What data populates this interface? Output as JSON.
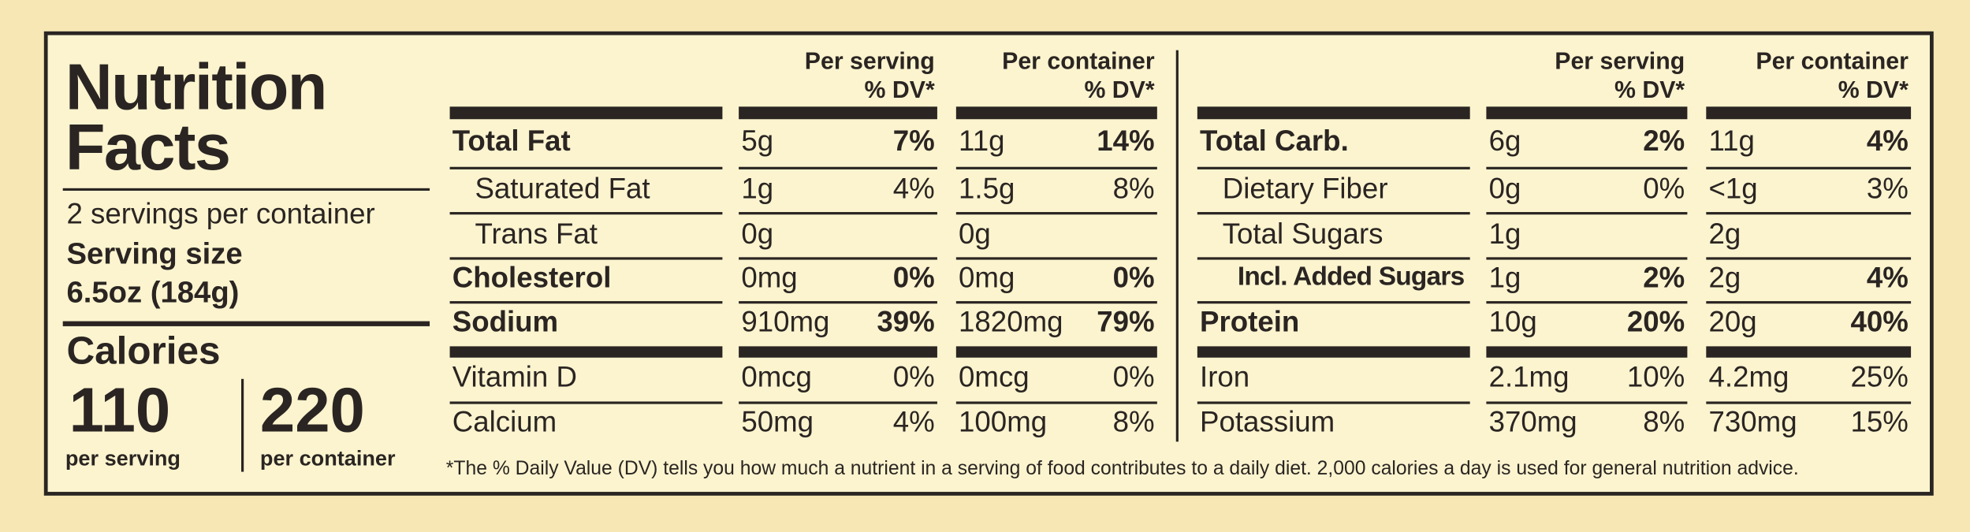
{
  "title_lines": [
    "Nutrition",
    "Facts"
  ],
  "servings": "2 servings per container",
  "serving_size_label": "Serving size",
  "serving_size": "6.5oz (184g)",
  "calories_label": "Calories",
  "calories": [
    {
      "amount": "110",
      "label": "per serving"
    },
    {
      "amount": "220",
      "label": "per container"
    }
  ],
  "tables": [
    {
      "headers": [
        {
          "line1": "Per serving",
          "line2": "% DV*"
        },
        {
          "line1": "Per container",
          "line2": "% DV*"
        }
      ],
      "rows": [
        {
          "name": "Total Fat",
          "serving": [
            "5g",
            "7%"
          ],
          "container": [
            "11g",
            "14%"
          ]
        },
        {
          "name": "Saturated Fat",
          "serving": [
            "1g",
            "4%"
          ],
          "container": [
            "1.5g",
            "8%"
          ]
        },
        {
          "name": "Trans Fat",
          "serving": [
            "0g"
          ],
          "container": [
            "0g"
          ]
        },
        {
          "name": "Cholesterol",
          "serving": [
            "0mg",
            "0%"
          ],
          "container": [
            "0mg",
            "0%"
          ]
        },
        {
          "name": "Sodium",
          "serving": [
            "910mg",
            "39%"
          ],
          "container": [
            "1820mg",
            "79%"
          ]
        },
        {
          "name": "Vitamin D",
          "serving": [
            "0mcg",
            "0%"
          ],
          "container": [
            "0mcg",
            "0%"
          ]
        },
        {
          "name": "Calcium",
          "serving": [
            "50mg",
            "4%"
          ],
          "container": [
            "100mg",
            "8%"
          ]
        }
      ]
    },
    {
      "headers": [
        {
          "line1": "Per serving",
          "line2": "% DV*"
        },
        {
          "line1": "Per container",
          "line2": "% DV*"
        }
      ],
      "rows": [
        {
          "name": "Total Carb.",
          "serving": [
            "6g",
            "2%"
          ],
          "container": [
            "11g",
            "4%"
          ]
        },
        {
          "name": "Dietary Fiber",
          "serving": [
            "0g",
            "0%"
          ],
          "container": [
            "<1g",
            "3%"
          ]
        },
        {
          "name": "Total Sugars",
          "serving": [
            "1g"
          ],
          "container": [
            "2g"
          ]
        },
        {
          "name": "Incl. Added Sugars",
          "serving": [
            "1g",
            "2%"
          ],
          "container": [
            "2g",
            "4%"
          ]
        },
        {
          "name": "Protein",
          "serving": [
            "10g",
            "20%"
          ],
          "container": [
            "20g",
            "40%"
          ]
        },
        {
          "name": "Iron",
          "serving": [
            "2.1mg",
            "10%"
          ],
          "container": [
            "4.2mg",
            "25%"
          ]
        },
        {
          "name": "Potassium",
          "serving": [
            "370mg",
            "8%"
          ],
          "container": [
            "730mg",
            "15%"
          ]
        }
      ]
    }
  ],
  "footnote": "*The % Daily Value (DV) tells you how much a nutrient in a serving of food contributes to a daily diet. 2,000 calories a day is used for general nutrition advice."
}
